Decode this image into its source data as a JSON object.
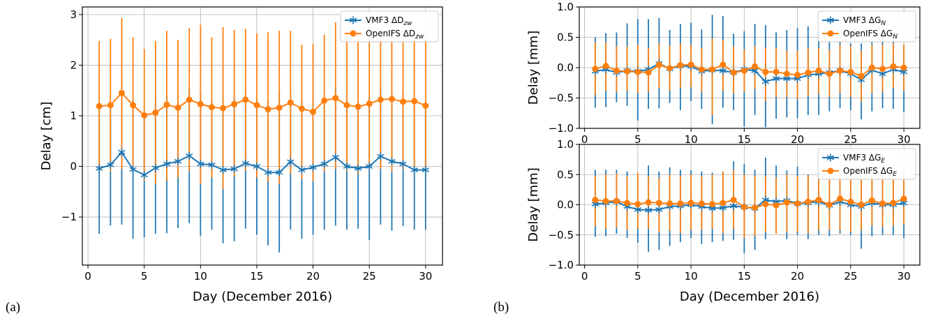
{
  "colors": {
    "vmf3": "#1f77b4",
    "openifs": "#ff7f0e",
    "grid": "#b0b0b0"
  },
  "panel_labels": [
    "(a)",
    "(b)"
  ],
  "chart_data": [
    {
      "type": "line",
      "panel": "(a)",
      "xlabel": "Day (December 2016)",
      "ylabel": "Delay [cm]",
      "xlim": [
        -0.5,
        31.5
      ],
      "ylim": [
        -1.95,
        3.15
      ],
      "xticks": [
        0,
        5,
        10,
        15,
        20,
        25,
        30
      ],
      "yticks": [
        -1,
        0,
        1,
        2,
        3
      ],
      "ytick_labels": [
        "−1",
        "0",
        "1",
        "2",
        "3"
      ],
      "grid": true,
      "legend_position": "top-right",
      "x": [
        1,
        2,
        3,
        4,
        5,
        6,
        7,
        8,
        9,
        10,
        11,
        12,
        13,
        14,
        15,
        16,
        17,
        18,
        19,
        20,
        21,
        22,
        23,
        24,
        25,
        26,
        27,
        28,
        29,
        30
      ],
      "series": [
        {
          "name": "VMF3 ΔD",
          "name_sub": "zw",
          "marker": "star",
          "color_key": "vmf3",
          "values": [
            -0.04,
            0.03,
            0.28,
            -0.06,
            -0.17,
            -0.03,
            0.05,
            0.1,
            0.21,
            0.05,
            0.03,
            -0.07,
            -0.05,
            0.06,
            0.0,
            -0.12,
            -0.12,
            0.09,
            -0.07,
            -0.02,
            0.05,
            0.18,
            0.0,
            -0.04,
            0.0,
            0.2,
            0.1,
            0.05,
            -0.07,
            -0.07
          ],
          "err_low": [
            -1.33,
            -1.17,
            -1.15,
            -1.43,
            -1.4,
            -1.33,
            -1.32,
            -1.22,
            -1.12,
            -1.37,
            -1.25,
            -1.52,
            -1.48,
            -1.23,
            -1.35,
            -1.56,
            -1.7,
            -1.25,
            -1.43,
            -1.35,
            -1.25,
            -1.17,
            -1.25,
            -1.23,
            -1.45,
            -1.15,
            -1.27,
            -1.18,
            -1.25,
            -1.25
          ],
          "err_high": [
            1.25,
            1.22,
            1.72,
            1.32,
            1.0,
            1.25,
            1.38,
            1.42,
            1.55,
            1.45,
            1.3,
            1.37,
            1.37,
            1.42,
            1.33,
            1.3,
            1.48,
            1.42,
            1.3,
            1.27,
            1.37,
            1.58,
            1.33,
            1.28,
            1.37,
            1.57,
            1.47,
            1.47,
            1.33,
            1.2
          ]
        },
        {
          "name": "OpenIFS ΔD",
          "name_sub": "zw",
          "marker": "circle",
          "color_key": "openifs",
          "values": [
            1.19,
            1.21,
            1.45,
            1.21,
            1.01,
            1.06,
            1.22,
            1.16,
            1.32,
            1.23,
            1.17,
            1.15,
            1.23,
            1.32,
            1.21,
            1.13,
            1.16,
            1.26,
            1.14,
            1.08,
            1.3,
            1.35,
            1.21,
            1.18,
            1.24,
            1.32,
            1.33,
            1.28,
            1.29,
            1.2
          ],
          "err_low": [
            -0.1,
            -0.1,
            -0.05,
            -0.05,
            -0.28,
            -0.35,
            -0.28,
            -0.22,
            -0.1,
            -0.35,
            -0.22,
            -0.45,
            -0.2,
            -0.08,
            -0.22,
            -0.3,
            -0.35,
            -0.15,
            -0.25,
            -0.3,
            -0.1,
            -0.05,
            -0.1,
            -0.15,
            -0.08,
            -0.05,
            -0.1,
            -0.05,
            -0.1,
            -0.1
          ],
          "err_high": [
            2.48,
            2.52,
            2.93,
            2.55,
            2.32,
            2.48,
            2.68,
            2.5,
            2.73,
            2.8,
            2.55,
            2.75,
            2.7,
            2.72,
            2.63,
            2.65,
            2.68,
            2.68,
            2.4,
            2.42,
            2.6,
            2.85,
            2.58,
            2.62,
            2.72,
            2.73,
            2.62,
            2.68,
            2.62,
            2.55
          ]
        }
      ]
    },
    {
      "type": "line",
      "panel": "(b) top",
      "xlabel": "",
      "ylabel": "Delay [mm]",
      "xlim": [
        -0.5,
        31.5
      ],
      "ylim": [
        -1.0,
        1.0
      ],
      "xticks": [
        0,
        5,
        10,
        15,
        20,
        25,
        30
      ],
      "yticks": [
        -1.0,
        -0.5,
        0.0,
        0.5,
        1.0
      ],
      "ytick_labels": [
        "−1.0",
        "−0.5",
        "0.0",
        "0.5",
        "1.0"
      ],
      "grid": true,
      "legend_position": "top-right",
      "x": [
        1,
        2,
        3,
        4,
        5,
        6,
        7,
        8,
        9,
        10,
        11,
        12,
        13,
        14,
        15,
        16,
        17,
        18,
        19,
        20,
        21,
        22,
        23,
        24,
        25,
        26,
        27,
        28,
        29,
        30
      ],
      "series": [
        {
          "name": "VMF3 ΔG",
          "name_sub": "N",
          "marker": "star",
          "color_key": "vmf3",
          "values": [
            -0.06,
            -0.03,
            -0.08,
            -0.05,
            -0.06,
            -0.03,
            0.07,
            -0.02,
            0.03,
            0.02,
            -0.06,
            -0.04,
            -0.05,
            -0.08,
            -0.03,
            -0.05,
            -0.23,
            -0.18,
            -0.18,
            -0.18,
            -0.12,
            -0.1,
            -0.08,
            -0.05,
            -0.1,
            -0.2,
            -0.04,
            -0.1,
            -0.03,
            -0.07
          ],
          "err_low": [
            -0.66,
            -0.65,
            -0.57,
            -0.63,
            -0.87,
            -0.68,
            -0.67,
            -0.58,
            -0.7,
            -0.55,
            -0.68,
            -0.93,
            -0.66,
            -0.7,
            -0.97,
            -0.78,
            -0.98,
            -0.84,
            -0.82,
            -0.83,
            -0.78,
            -0.78,
            -0.72,
            -0.67,
            -0.7,
            -0.85,
            -0.72,
            -0.67,
            -0.68,
            -0.73
          ],
          "err_high": [
            0.5,
            0.57,
            0.58,
            0.73,
            0.8,
            0.8,
            0.82,
            0.62,
            0.72,
            0.74,
            0.63,
            0.87,
            0.85,
            0.56,
            0.6,
            0.72,
            0.7,
            0.58,
            0.62,
            0.65,
            0.68,
            0.6,
            0.42,
            0.42,
            0.4,
            0.4,
            0.52,
            0.48,
            0.5,
            0.38
          ]
        },
        {
          "name": "OpenIFS ΔG",
          "name_sub": "N",
          "marker": "circle",
          "color_key": "openifs",
          "values": [
            -0.02,
            0.03,
            -0.05,
            -0.06,
            -0.07,
            -0.08,
            0.05,
            -0.01,
            0.04,
            0.05,
            -0.03,
            -0.03,
            0.05,
            -0.08,
            -0.05,
            0.02,
            -0.07,
            -0.07,
            -0.1,
            -0.12,
            -0.08,
            -0.05,
            -0.1,
            -0.05,
            -0.07,
            -0.14,
            0.0,
            -0.02,
            0.02,
            0.0
          ],
          "err_low": [
            -0.45,
            -0.38,
            -0.4,
            -0.38,
            -0.42,
            -0.4,
            -0.34,
            -0.38,
            -0.33,
            -0.32,
            -0.4,
            -0.78,
            -0.38,
            -0.43,
            -0.4,
            -0.35,
            -0.55,
            -0.48,
            -0.48,
            -0.52,
            -0.47,
            -0.44,
            -0.48,
            -0.42,
            -0.48,
            -0.56,
            -0.42,
            -0.4,
            -0.33,
            -0.38
          ],
          "err_high": [
            0.42,
            0.42,
            0.35,
            0.35,
            0.38,
            0.32,
            0.4,
            0.36,
            0.4,
            0.38,
            0.32,
            0.48,
            0.45,
            0.35,
            0.3,
            0.35,
            0.33,
            0.32,
            0.28,
            0.28,
            0.32,
            0.32,
            0.3,
            0.38,
            0.36,
            0.28,
            0.38,
            0.38,
            0.4,
            0.38
          ]
        }
      ]
    },
    {
      "type": "line",
      "panel": "(b) bottom",
      "xlabel": "Day (December 2016)",
      "ylabel": "Delay [mm]",
      "xlim": [
        -0.5,
        31.5
      ],
      "ylim": [
        -1.0,
        1.0
      ],
      "xticks": [
        0,
        5,
        10,
        15,
        20,
        25,
        30
      ],
      "yticks": [
        -1.0,
        -0.5,
        0.0,
        0.5,
        1.0
      ],
      "ytick_labels": [
        "−1.0",
        "−0.5",
        "0.0",
        "0.5",
        "1.0"
      ],
      "grid": true,
      "legend_position": "top-right",
      "x": [
        1,
        2,
        3,
        4,
        5,
        6,
        7,
        8,
        9,
        10,
        11,
        12,
        13,
        14,
        15,
        16,
        17,
        18,
        19,
        20,
        21,
        22,
        23,
        24,
        25,
        26,
        27,
        28,
        29,
        30
      ],
      "series": [
        {
          "name": "VMF3 ΔG",
          "name_sub": "E",
          "marker": "star",
          "color_key": "vmf3",
          "values": [
            0.01,
            0.03,
            0.05,
            -0.03,
            -0.08,
            -0.09,
            -0.08,
            -0.03,
            -0.02,
            0.0,
            -0.03,
            -0.06,
            -0.05,
            -0.02,
            -0.04,
            -0.06,
            0.08,
            0.05,
            0.07,
            0.02,
            0.03,
            0.05,
            -0.01,
            0.05,
            0.0,
            -0.03,
            0.03,
            0.0,
            0.0,
            0.03
          ],
          "err_low": [
            -0.53,
            -0.52,
            -0.48,
            -0.55,
            -0.63,
            -0.78,
            -0.75,
            -0.68,
            -0.62,
            -0.55,
            -0.65,
            -0.62,
            -0.6,
            -0.58,
            -0.8,
            -0.75,
            -0.57,
            -0.47,
            -0.57,
            -0.5,
            -0.57,
            -0.5,
            -0.52,
            -0.48,
            -0.5,
            -0.73,
            -0.52,
            -0.5,
            -0.5,
            -0.55
          ],
          "err_high": [
            0.58,
            0.58,
            0.58,
            0.55,
            0.48,
            0.65,
            0.55,
            0.62,
            0.58,
            0.57,
            0.55,
            0.53,
            0.55,
            0.72,
            0.67,
            0.58,
            0.78,
            0.65,
            0.57,
            0.63,
            0.5,
            0.53,
            0.55,
            0.47,
            0.48,
            0.47,
            0.53,
            0.5,
            0.48,
            0.57
          ]
        },
        {
          "name": "OpenIFS ΔG",
          "name_sub": "E",
          "marker": "circle",
          "color_key": "openifs",
          "values": [
            0.08,
            0.06,
            0.06,
            0.03,
            0.01,
            0.04,
            0.03,
            0.02,
            0.02,
            0.03,
            0.02,
            0.01,
            0.03,
            0.08,
            -0.04,
            -0.05,
            0.01,
            -0.01,
            0.04,
            0.02,
            0.05,
            0.08,
            0.0,
            0.1,
            0.05,
            0.0,
            0.07,
            0.02,
            0.03,
            0.1
          ],
          "err_low": [
            -0.35,
            -0.4,
            -0.38,
            -0.42,
            -0.4,
            -0.4,
            -0.45,
            -0.43,
            -0.47,
            -0.42,
            -0.42,
            -0.4,
            -0.47,
            -0.4,
            -0.55,
            -0.52,
            -0.45,
            -0.48,
            -0.45,
            -0.45,
            -0.47,
            -0.43,
            -0.42,
            -0.42,
            -0.45,
            -0.43,
            -0.35,
            -0.37,
            -0.35,
            -0.33
          ],
          "err_high": [
            0.48,
            0.5,
            0.52,
            0.47,
            0.53,
            0.47,
            0.45,
            0.5,
            0.48,
            0.5,
            0.47,
            0.5,
            0.55,
            0.58,
            0.5,
            0.48,
            0.47,
            0.45,
            0.5,
            0.48,
            0.48,
            0.5,
            0.5,
            0.58,
            0.52,
            0.45,
            0.52,
            0.48,
            0.5,
            0.53
          ]
        }
      ]
    }
  ]
}
